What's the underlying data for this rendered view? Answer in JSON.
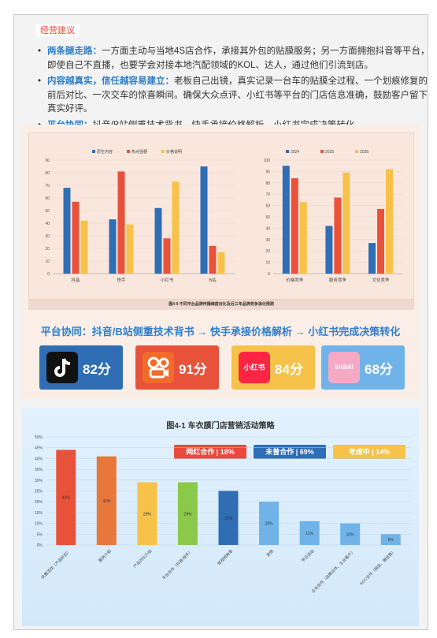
{
  "section_title": "经营建议",
  "bullets": [
    {
      "keyword": "两条腿走路：",
      "text": "一方面主动与当地4S店合作，承接其外包的贴膜服务；另一方面拥抱抖音等平台，即使自己不直播，也要学会对接本地汽配领域的KOL、达人，通过他们引流到店。"
    },
    {
      "keyword": "内容越真实，信任越容易建立：",
      "text": "老板自己出镜，真实记录一台车的贴膜全过程、一个划痕修复的前后对比、一次交车的惊喜瞬间。确保大众点评、小红书等平台的门店信息准确，鼓励客户留下真实好评。"
    },
    {
      "keyword": "平台协同：",
      "text": "抖音/B站侧重技术背书，快手承接价格解析，小红书完成决策转化。"
    }
  ],
  "colors": {
    "blue": "#2f6db5",
    "red": "#e8523b",
    "yellow": "#f6c24a",
    "accent": "#2c7ec9"
  },
  "chart_data": [
    {
      "type": "bar",
      "categories": [
        "抖音",
        "快手",
        "小红书",
        "B站"
      ],
      "series": [
        {
          "name": "原生内容",
          "values": [
            68,
            43,
            52,
            85
          ],
          "color": "#2f6db5"
        },
        {
          "name": "热点强梗",
          "values": [
            57,
            81,
            28,
            22
          ],
          "color": "#e8523b"
        },
        {
          "name": "价格说明",
          "values": [
            42,
            39,
            73,
            17
          ],
          "color": "#f6c24a"
        }
      ],
      "ylim": [
        0,
        90
      ],
      "yticks": [
        0,
        10,
        20,
        30,
        40,
        50,
        60,
        70,
        80,
        90
      ],
      "legend": "top"
    },
    {
      "type": "bar",
      "categories": [
        "价格竞争",
        "服务竞争",
        "文化竞争"
      ],
      "series": [
        {
          "name": "2024",
          "values": [
            95,
            42,
            27
          ],
          "color": "#2f6db5"
        },
        {
          "name": "2025",
          "values": [
            84,
            67,
            57
          ],
          "color": "#e8523b"
        },
        {
          "name": "2026",
          "values": [
            63,
            89,
            92
          ],
          "color": "#f6c24a"
        }
      ],
      "ylim": [
        0,
        100
      ],
      "yticks": [
        0,
        10,
        20,
        30,
        40,
        50,
        60,
        70,
        80,
        90,
        100
      ],
      "legend": "top"
    },
    {
      "type": "bar",
      "title": "图4-1 车衣膜门店营销活动策略",
      "categories": [
        "优惠活动（产品折扣）",
        "服务介绍",
        "产品对比介绍",
        "平台合作（抖音/快手）",
        "短视频种草",
        "其他",
        "节日活动",
        "企业合作（品牌合作、企业客户）",
        "KOC合作（网店、微信营）"
      ],
      "values": [
        44,
        41,
        29,
        29,
        25,
        20,
        11,
        10,
        5
      ],
      "value_labels": [
        "44%",
        "41%",
        "29%",
        "29%",
        "25%",
        "20%",
        "11%",
        "10%",
        "5%"
      ],
      "colors": [
        "#e8523b",
        "#e8773b",
        "#f6c24a",
        "#8ac94a",
        "#2f6db5",
        "#6fb3e8",
        "#6fb3e8",
        "#6fb3e8",
        "#6fb3e8"
      ],
      "ylim": [
        0,
        50
      ],
      "yticks": [
        "0%",
        "5%",
        "10%",
        "15%",
        "20%",
        "25%",
        "30%",
        "35%",
        "40%",
        "45%",
        "50%"
      ],
      "tags": [
        {
          "label": "网红合作 | 18%",
          "color": "#e84a3c"
        },
        {
          "label": "未曾合作 | 69%",
          "color": "#2f6db5"
        },
        {
          "label": "考虑中 | 14%",
          "color": "#f6c24a"
        }
      ]
    }
  ],
  "chart1_caption": "图4-9 不同平台品牌传播维度对比及近三年品牌竞争演化预测",
  "platform_subtitle": "平台协同：抖音/B站侧重技术背书 → 快手承接价格解析 → 小红书完成决策转化",
  "platforms": [
    {
      "name": "抖音",
      "score": "82分",
      "color": "#2f6db5",
      "icon": "douyin-logo"
    },
    {
      "name": "快手",
      "score": "91分",
      "color": "#e8523b",
      "icon": "kuaishou-logo"
    },
    {
      "name": "小红书",
      "score": "84分",
      "color": "#f6c24a",
      "icon": "xiaohongshu-logo",
      "logo_text": "小红书"
    },
    {
      "name": "B站",
      "score": "68分",
      "color": "#6fb3e8",
      "icon": "bilibili-logo",
      "logo_text": "bilibili"
    }
  ]
}
